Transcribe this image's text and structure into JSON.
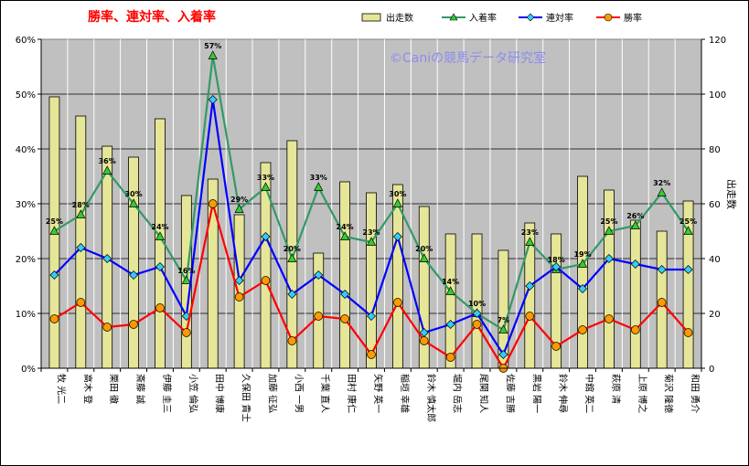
{
  "chart_data": {
    "type": "bar+line",
    "title": "勝率、連対率、入着率",
    "watermark": "©Caniの競馬データ研究室",
    "y2label": "出走数",
    "ylim": [
      0,
      60
    ],
    "y2lim": [
      0,
      120
    ],
    "yticks": [
      "0%",
      "10%",
      "20%",
      "30%",
      "40%",
      "50%",
      "60%"
    ],
    "y2ticks": [
      "0",
      "20",
      "40",
      "60",
      "80",
      "100",
      "120"
    ],
    "legend": "top",
    "grid": true,
    "plot_color": "#c0c0c0",
    "categories": [
      "牧 光二",
      "高木 登",
      "栗田 徹",
      "斎藤 誠",
      "伊藤 圭三",
      "小笠 倫弘",
      "田中 博康",
      "久保田 貴士",
      "加藤 征弘",
      "小西 一男",
      "千葉 直人",
      "田村 康仁",
      "矢野 英一",
      "稲垣 幸雄",
      "鈴木 慎太郎",
      "堀内 岳志",
      "尾関 知人",
      "佐藤 吉勝",
      "黒岩 陽一",
      "鈴木 伸尋",
      "中舘 英二",
      "萩原 清",
      "上原 博之",
      "菊沢 隆徳",
      "和田 勇介"
    ],
    "series": [
      {
        "name": "出走数",
        "type": "bar",
        "axis": "y2",
        "color": "#e6e699",
        "values": [
          99,
          92,
          81,
          77,
          91,
          63,
          69,
          56,
          75,
          83,
          42,
          68,
          64,
          67,
          59,
          49,
          49,
          43,
          53,
          49,
          70,
          65,
          54,
          50,
          61
        ]
      },
      {
        "name": "入着率",
        "type": "line",
        "axis": "y",
        "color": "#339966",
        "values": [
          25,
          28,
          36,
          30,
          24,
          16,
          57,
          29,
          33,
          20,
          33,
          24,
          23,
          30,
          20,
          14,
          10,
          7,
          23,
          18,
          19,
          25,
          26,
          32,
          25
        ]
      },
      {
        "name": "連対率",
        "type": "line",
        "axis": "y",
        "color": "#0000ff",
        "values": [
          17,
          22,
          20,
          17,
          18.5,
          9.5,
          49,
          16,
          24,
          13.5,
          17,
          13.5,
          9.5,
          24,
          6.5,
          8,
          10,
          2.5,
          15,
          18.5,
          14.5,
          20,
          19,
          18,
          18
        ]
      },
      {
        "name": "勝率",
        "type": "line",
        "axis": "y",
        "color": "#ff0000",
        "values": [
          9,
          12,
          7.5,
          8,
          11,
          6.5,
          30,
          13,
          16,
          5,
          9.5,
          9,
          2.5,
          12,
          5,
          2,
          8,
          0,
          9.5,
          4,
          7,
          9,
          7,
          12,
          6.5
        ]
      }
    ],
    "data_labels": {
      "series": "入着率",
      "values": [
        "25%",
        "28%",
        "36%",
        "30%",
        "24%",
        "16%",
        "57%",
        "29%",
        "33%",
        "20%",
        "33%",
        "24%",
        "23%",
        "30%",
        "20%",
        "14%",
        "10%",
        "7%",
        "23%",
        "18%",
        "19%",
        "25%",
        "26%",
        "32%",
        "25%"
      ]
    }
  }
}
